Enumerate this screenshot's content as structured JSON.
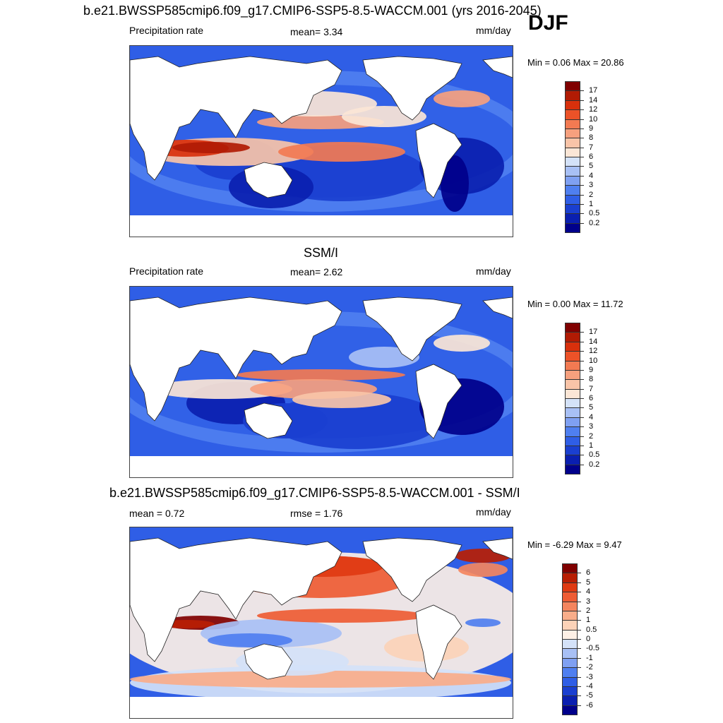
{
  "figure": {
    "title": "b.e21.BWSSP585cmip6.f09_g17.CMIP6-SSP5-8.5-WACCM.001 (yrs 2016-2045)",
    "season": "DJF"
  },
  "panels": [
    {
      "id": "model",
      "title": "",
      "left_label": "Precipitation rate",
      "center_label": "mean=   3.34",
      "units": "mm/day",
      "minmax": "Min =   0.06 Max =  20.86",
      "colorbar_labels": [
        "17",
        "14",
        "12",
        "10",
        "9",
        "8",
        "7",
        "6",
        "5",
        "4",
        "3",
        "2",
        "1",
        "0.5",
        "0.2"
      ]
    },
    {
      "id": "obs",
      "title": "SSM/I",
      "left_label": "Precipitation rate",
      "center_label": "mean=   2.62",
      "units": "mm/day",
      "minmax": "Min =   0.00 Max =  11.72",
      "colorbar_labels": [
        "17",
        "14",
        "12",
        "10",
        "9",
        "8",
        "7",
        "6",
        "5",
        "4",
        "3",
        "2",
        "1",
        "0.5",
        "0.2"
      ]
    },
    {
      "id": "diff",
      "title": "b.e21.BWSSP585cmip6.f09_g17.CMIP6-SSP5-8.5-WACCM.001 - SSM/I",
      "left_label": "mean =   0.72",
      "center_label": "rmse =   1.76",
      "units": "mm/day",
      "minmax": "Min =  -6.29 Max =   9.47",
      "colorbar_labels": [
        "6",
        "5",
        "4",
        "3",
        "2",
        "1",
        "0.5",
        "0",
        "-0.5",
        "-1",
        "-2",
        "-3",
        "-4",
        "-5",
        "-6"
      ]
    }
  ],
  "colors": {
    "precip_scale": [
      "#00008b",
      "#0a1fb0",
      "#1a3fd0",
      "#2f5ee6",
      "#4f7ff0",
      "#7fa0f2",
      "#a8c0f5",
      "#d4e2f8",
      "#fbe6d6",
      "#f9c4a8",
      "#f6a07e",
      "#f27a52",
      "#ec5228",
      "#d8300c",
      "#b11b04",
      "#800000"
    ],
    "diff_scale": [
      "#00008b",
      "#0a1fb0",
      "#1a3fd0",
      "#2f5ee6",
      "#4f7ff0",
      "#7fa0f2",
      "#a8c0f5",
      "#d4e2f8",
      "#fdf0e6",
      "#fbd2b8",
      "#f8ad8a",
      "#f4855e",
      "#ee5c34",
      "#df3a12",
      "#b81e04",
      "#800000"
    ]
  }
}
